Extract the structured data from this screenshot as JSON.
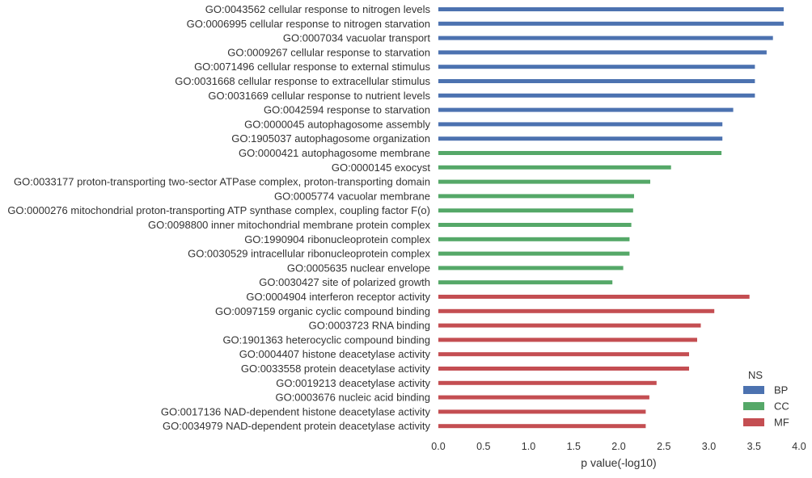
{
  "chart_data": {
    "type": "bar",
    "orientation": "horizontal",
    "xlabel": "p value(-log10)",
    "xlim": [
      0,
      4.0
    ],
    "xticks": [
      "0.0",
      "0.5",
      "1.0",
      "1.5",
      "2.0",
      "2.5",
      "3.0",
      "3.5",
      "4.0"
    ],
    "grid": false,
    "legend": {
      "title": "NS",
      "position": "bottom-right",
      "entries": [
        {
          "label": "BP",
          "color": "#4C72B0"
        },
        {
          "label": "CC",
          "color": "#55A868"
        },
        {
          "label": "MF",
          "color": "#C44E52"
        }
      ]
    },
    "bars": [
      {
        "label": "GO:0043562 cellular response to nitrogen levels",
        "value": 3.83,
        "ns": "BP"
      },
      {
        "label": "GO:0006995 cellular response to nitrogen starvation",
        "value": 3.83,
        "ns": "BP"
      },
      {
        "label": "GO:0007034 vacuolar transport",
        "value": 3.71,
        "ns": "BP"
      },
      {
        "label": "GO:0009267 cellular response to starvation",
        "value": 3.64,
        "ns": "BP"
      },
      {
        "label": "GO:0071496 cellular response to external stimulus",
        "value": 3.51,
        "ns": "BP"
      },
      {
        "label": "GO:0031668 cellular response to extracellular stimulus",
        "value": 3.51,
        "ns": "BP"
      },
      {
        "label": "GO:0031669 cellular response to nutrient levels",
        "value": 3.51,
        "ns": "BP"
      },
      {
        "label": "GO:0042594 response to starvation",
        "value": 3.27,
        "ns": "BP"
      },
      {
        "label": "GO:0000045 autophagosome assembly",
        "value": 3.15,
        "ns": "BP"
      },
      {
        "label": "GO:1905037 autophagosome organization",
        "value": 3.15,
        "ns": "BP"
      },
      {
        "label": "GO:0000421 autophagosome membrane",
        "value": 3.14,
        "ns": "CC"
      },
      {
        "label": "GO:0000145 exocyst",
        "value": 2.58,
        "ns": "CC"
      },
      {
        "label": "GO:0033177 proton-transporting two-sector ATPase complex, proton-transporting domain",
        "value": 2.35,
        "ns": "CC"
      },
      {
        "label": "GO:0005774 vacuolar membrane",
        "value": 2.17,
        "ns": "CC"
      },
      {
        "label": "GO:0000276 mitochondrial proton-transporting ATP synthase complex, coupling factor F(o)",
        "value": 2.16,
        "ns": "CC"
      },
      {
        "label": "GO:0098800 inner mitochondrial membrane protein complex",
        "value": 2.14,
        "ns": "CC"
      },
      {
        "label": "GO:1990904 ribonucleoprotein complex",
        "value": 2.12,
        "ns": "CC"
      },
      {
        "label": "GO:0030529 intracellular ribonucleoprotein complex",
        "value": 2.12,
        "ns": "CC"
      },
      {
        "label": "GO:0005635 nuclear envelope",
        "value": 2.05,
        "ns": "CC"
      },
      {
        "label": "GO:0030427 site of polarized growth",
        "value": 1.93,
        "ns": "CC"
      },
      {
        "label": "GO:0004904 interferon receptor activity",
        "value": 3.45,
        "ns": "MF"
      },
      {
        "label": "GO:0097159 organic cyclic compound binding",
        "value": 3.06,
        "ns": "MF"
      },
      {
        "label": "GO:0003723 RNA binding",
        "value": 2.91,
        "ns": "MF"
      },
      {
        "label": "GO:1901363 heterocyclic compound binding",
        "value": 2.87,
        "ns": "MF"
      },
      {
        "label": "GO:0004407 histone deacetylase activity",
        "value": 2.78,
        "ns": "MF"
      },
      {
        "label": "GO:0033558 protein deacetylase activity",
        "value": 2.78,
        "ns": "MF"
      },
      {
        "label": "GO:0019213 deacetylase activity",
        "value": 2.42,
        "ns": "MF"
      },
      {
        "label": "GO:0003676 nucleic acid binding",
        "value": 2.34,
        "ns": "MF"
      },
      {
        "label": "GO:0017136 NAD-dependent histone deacetylase activity",
        "value": 2.3,
        "ns": "MF"
      },
      {
        "label": "GO:0034979 NAD-dependent protein deacetylase activity",
        "value": 2.3,
        "ns": "MF"
      }
    ]
  }
}
